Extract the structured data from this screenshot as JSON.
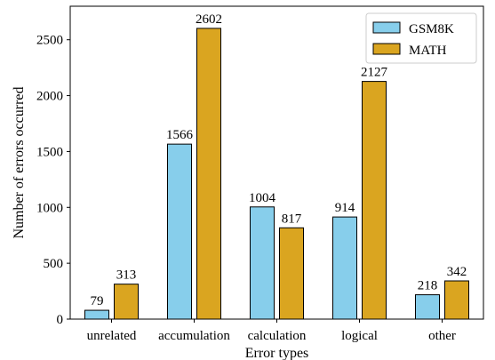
{
  "chart_data": {
    "type": "bar",
    "title": "",
    "xlabel": "Error types",
    "ylabel": "Number of errors occurred",
    "categories": [
      "unrelated",
      "accumulation",
      "calculation",
      "logical",
      "other"
    ],
    "series": [
      {
        "name": "GSM8K",
        "values": [
          79,
          1566,
          1004,
          914,
          218
        ],
        "color": "#87CEEB"
      },
      {
        "name": "MATH",
        "values": [
          313,
          2602,
          817,
          2127,
          342
        ],
        "color": "#DAA520"
      }
    ],
    "ylim": [
      0,
      2800
    ],
    "yticks": [
      0,
      500,
      1000,
      1500,
      2000,
      2500
    ],
    "grid": false,
    "legend_position": "top-right"
  }
}
